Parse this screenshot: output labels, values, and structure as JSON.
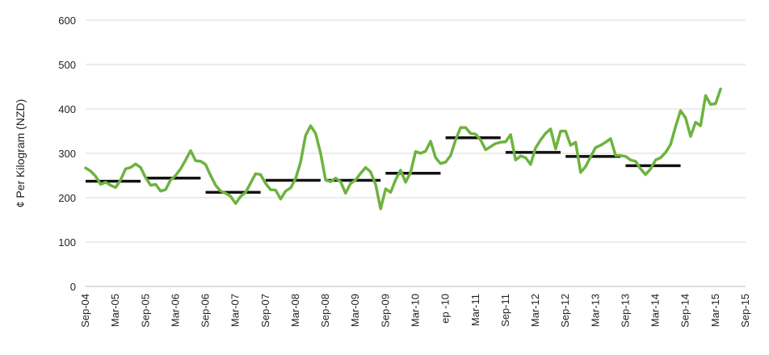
{
  "chart_data": {
    "type": "line",
    "title": "",
    "xlabel": "",
    "ylabel": "¢ Per Kilogram (NZD)",
    "ylim": [
      0,
      600
    ],
    "yticks": [
      0,
      100,
      200,
      300,
      400,
      500,
      600
    ],
    "grid": "horizontal",
    "legend": "none",
    "x_tick_labels": [
      "Sep-04",
      "Mar-05",
      "Sep-05",
      "Mar-06",
      "Sep-06",
      "Mar-07",
      "Sep-07",
      "Mar-08",
      "Sep-08",
      "Mar-09",
      "Sep-09",
      "Mar-10",
      "ep -10",
      "Mar-11",
      "Sep-11",
      "Mar-12",
      "Sep-12",
      "Mar-13",
      "Sep-13",
      "Mar-14",
      "Sep-14",
      "Mar-15",
      "Sep-15"
    ],
    "series": [
      {
        "role": "monthly-price",
        "color": "#6db33f",
        "x_unit": "months since Sep-04",
        "points": [
          [
            0,
            267
          ],
          [
            1,
            260
          ],
          [
            2,
            248
          ],
          [
            3,
            230
          ],
          [
            4,
            235
          ],
          [
            5,
            228
          ],
          [
            6,
            223
          ],
          [
            7,
            240
          ],
          [
            8,
            265
          ],
          [
            9,
            268
          ],
          [
            10,
            276
          ],
          [
            11,
            268
          ],
          [
            12,
            245
          ],
          [
            13,
            228
          ],
          [
            14,
            230
          ],
          [
            15,
            215
          ],
          [
            16,
            218
          ],
          [
            17,
            240
          ],
          [
            18,
            250
          ],
          [
            19,
            265
          ],
          [
            20,
            285
          ],
          [
            21,
            306
          ],
          [
            22,
            283
          ],
          [
            23,
            282
          ],
          [
            24,
            275
          ],
          [
            25,
            250
          ],
          [
            26,
            228
          ],
          [
            27,
            215
          ],
          [
            28,
            210
          ],
          [
            29,
            203
          ],
          [
            30,
            187
          ],
          [
            31,
            203
          ],
          [
            32,
            212
          ],
          [
            33,
            233
          ],
          [
            34,
            254
          ],
          [
            35,
            252
          ],
          [
            36,
            232
          ],
          [
            37,
            218
          ],
          [
            38,
            217
          ],
          [
            39,
            197
          ],
          [
            40,
            215
          ],
          [
            41,
            222
          ],
          [
            42,
            243
          ],
          [
            43,
            280
          ],
          [
            44,
            340
          ],
          [
            45,
            362
          ],
          [
            46,
            345
          ],
          [
            47,
            300
          ],
          [
            48,
            240
          ],
          [
            49,
            236
          ],
          [
            50,
            244
          ],
          [
            51,
            236
          ],
          [
            52,
            210
          ],
          [
            53,
            232
          ],
          [
            54,
            240
          ],
          [
            55,
            255
          ],
          [
            56,
            268
          ],
          [
            57,
            258
          ],
          [
            58,
            230
          ],
          [
            59,
            175
          ],
          [
            60,
            220
          ],
          [
            61,
            212
          ],
          [
            62,
            240
          ],
          [
            63,
            262
          ],
          [
            64,
            235
          ],
          [
            65,
            257
          ],
          [
            66,
            304
          ],
          [
            67,
            300
          ],
          [
            68,
            305
          ],
          [
            69,
            327
          ],
          [
            70,
            290
          ],
          [
            71,
            277
          ],
          [
            72,
            280
          ],
          [
            73,
            295
          ],
          [
            74,
            330
          ],
          [
            75,
            358
          ],
          [
            76,
            358
          ],
          [
            77,
            345
          ],
          [
            78,
            343
          ],
          [
            79,
            330
          ],
          [
            80,
            308
          ],
          [
            81,
            315
          ],
          [
            82,
            322
          ],
          [
            83,
            325
          ],
          [
            84,
            326
          ],
          [
            85,
            342
          ],
          [
            86,
            285
          ],
          [
            87,
            294
          ],
          [
            88,
            290
          ],
          [
            89,
            275
          ],
          [
            90,
            312
          ],
          [
            91,
            330
          ],
          [
            92,
            345
          ],
          [
            93,
            355
          ],
          [
            94,
            310
          ],
          [
            95,
            350
          ],
          [
            96,
            350
          ],
          [
            97,
            318
          ],
          [
            98,
            325
          ],
          [
            99,
            257
          ],
          [
            100,
            270
          ],
          [
            101,
            292
          ],
          [
            102,
            313
          ],
          [
            103,
            318
          ],
          [
            104,
            325
          ],
          [
            105,
            333
          ],
          [
            106,
            295
          ],
          [
            107,
            295
          ],
          [
            108,
            293
          ],
          [
            109,
            285
          ],
          [
            110,
            282
          ],
          [
            111,
            265
          ],
          [
            112,
            252
          ],
          [
            113,
            265
          ],
          [
            114,
            285
          ],
          [
            115,
            290
          ],
          [
            116,
            302
          ],
          [
            117,
            320
          ],
          [
            118,
            360
          ],
          [
            119,
            396
          ],
          [
            120,
            380
          ],
          [
            121,
            338
          ],
          [
            122,
            370
          ],
          [
            123,
            362
          ],
          [
            124,
            430
          ],
          [
            125,
            410
          ],
          [
            126,
            412
          ],
          [
            127,
            445
          ]
        ]
      }
    ],
    "period_averages": {
      "color": "#111111",
      "segments": [
        {
          "x_start": 0,
          "x_end": 11,
          "value": 237
        },
        {
          "x_start": 12,
          "x_end": 23,
          "value": 244
        },
        {
          "x_start": 24,
          "x_end": 35,
          "value": 212
        },
        {
          "x_start": 36,
          "x_end": 47,
          "value": 239
        },
        {
          "x_start": 48,
          "x_end": 59,
          "value": 239
        },
        {
          "x_start": 60,
          "x_end": 71,
          "value": 255
        },
        {
          "x_start": 72,
          "x_end": 83,
          "value": 335
        },
        {
          "x_start": 84,
          "x_end": 95,
          "value": 302
        },
        {
          "x_start": 96,
          "x_end": 107,
          "value": 293
        },
        {
          "x_start": 108,
          "x_end": 119,
          "value": 272
        }
      ]
    }
  }
}
